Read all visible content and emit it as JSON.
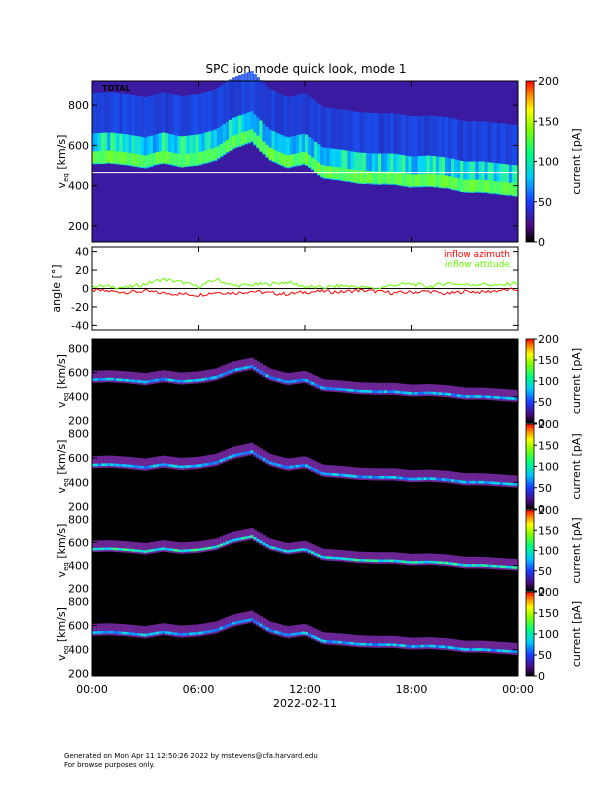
{
  "title": "SPC ion mode quick look, mode 1",
  "xaxis": {
    "ticks": [
      "00:00",
      "06:00",
      "12:00",
      "18:00",
      "00:00"
    ],
    "tick_hours": [
      0,
      6,
      12,
      18,
      24
    ],
    "date_label": "2022-02-11",
    "range_hours": [
      0,
      24
    ]
  },
  "panels": [
    {
      "id": "total",
      "label": "TOTAL",
      "ylabel_main": "v",
      "ylabel_sub": "eq",
      "ylabel_unit": " [km/s]",
      "yticks": [
        "200",
        "400",
        "600",
        "800"
      ],
      "ytick_values": [
        200,
        400,
        600,
        800
      ],
      "yrange": [
        120,
        920
      ],
      "colorbar": {
        "ticks": [
          "0",
          "50",
          "100",
          "150",
          "200"
        ],
        "tick_values": [
          0,
          50,
          100,
          150,
          200
        ],
        "label": "current [pA]"
      },
      "background": "#3a1aa0",
      "peak_color_low": "#1a8cff",
      "peak_color_high": "#6dff2a"
    },
    {
      "id": "s1",
      "label": "",
      "ylabel_main": "v",
      "ylabel_sub": "eq",
      "ylabel_unit": " [km/s]",
      "yticks": [
        "200",
        "400",
        "600",
        "800"
      ],
      "ytick_values": [
        200,
        400,
        600,
        800
      ],
      "yrange": [
        180,
        880
      ],
      "colorbar": {
        "ticks": [
          "0",
          "50",
          "100",
          "150",
          "200"
        ],
        "tick_values": [
          0,
          50,
          100,
          150,
          200
        ],
        "label": "current [pA]"
      },
      "background": "#000000"
    },
    {
      "id": "s2",
      "label": "",
      "ylabel_main": "v",
      "ylabel_sub": "eq",
      "ylabel_unit": " [km/s]",
      "yticks": [
        "200",
        "400",
        "600",
        "800"
      ],
      "ytick_values": [
        200,
        400,
        600,
        800
      ],
      "yrange": [
        180,
        880
      ],
      "colorbar": {
        "ticks": [
          "0",
          "50",
          "100",
          "150",
          "200"
        ],
        "tick_values": [
          0,
          50,
          100,
          150,
          200
        ],
        "label": "current [pA]"
      },
      "background": "#000000"
    },
    {
      "id": "s3",
      "label": "",
      "ylabel_main": "v",
      "ylabel_sub": "eq",
      "ylabel_unit": " [km/s]",
      "yticks": [
        "200",
        "400",
        "600",
        "800"
      ],
      "ytick_values": [
        200,
        400,
        600,
        800
      ],
      "yrange": [
        180,
        880
      ],
      "colorbar": {
        "ticks": [
          "0",
          "50",
          "100",
          "150",
          "200"
        ],
        "tick_values": [
          0,
          50,
          100,
          150,
          200
        ],
        "label": "current [pA]"
      },
      "background": "#000000"
    },
    {
      "id": "s4",
      "label": "",
      "ylabel_main": "v",
      "ylabel_sub": "eq",
      "ylabel_unit": " [km/s]",
      "yticks": [
        "200",
        "400",
        "600",
        "800"
      ],
      "ytick_values": [
        200,
        400,
        600,
        800
      ],
      "yrange": [
        180,
        880
      ],
      "colorbar": {
        "ticks": [
          "0",
          "50",
          "100",
          "150",
          "200"
        ],
        "tick_values": [
          0,
          50,
          100,
          150,
          200
        ],
        "label": "current [pA]"
      },
      "background": "#000000"
    }
  ],
  "angle_panel": {
    "ylabel": "angle [°]",
    "yticks": [
      "-40",
      "-20",
      "0",
      "20",
      "40"
    ],
    "ytick_values": [
      -40,
      -20,
      0,
      20,
      40
    ],
    "yrange": [
      -45,
      45
    ],
    "legend": [
      {
        "name": "inflow azimuth",
        "color": "#ff0000"
      },
      {
        "name": "inflow attitude",
        "color": "#66ff00"
      }
    ]
  },
  "chart_data": {
    "type": "heatmap",
    "title": "SPC ion mode quick look, mode 1",
    "x_unit": "hour of 2022-02-11",
    "colorbar_range_pA": [
      0,
      200
    ],
    "bulk_speed_kms": {
      "hours": [
        0,
        1,
        2,
        3,
        4,
        5,
        6,
        7,
        8,
        9,
        10,
        11,
        12,
        13,
        14,
        15,
        16,
        17,
        18,
        19,
        20,
        21,
        22,
        23,
        24
      ],
      "values": [
        540,
        545,
        535,
        520,
        545,
        525,
        535,
        560,
        620,
        650,
        560,
        520,
        540,
        470,
        460,
        445,
        440,
        440,
        425,
        430,
        420,
        400,
        400,
        390,
        380
      ]
    },
    "inflow_azimuth_deg": {
      "hours": [
        0,
        1,
        2,
        3,
        4,
        5,
        6,
        7,
        8,
        9,
        10,
        11,
        12,
        13,
        14,
        15,
        16,
        17,
        18,
        19,
        20,
        21,
        22,
        23,
        24
      ],
      "values": [
        -2,
        -3,
        -4,
        -3,
        -5,
        -6,
        -7,
        -4,
        -5,
        -3,
        -5,
        -6,
        -4,
        -3,
        -4,
        -2,
        -3,
        -5,
        -4,
        -3,
        -6,
        -3,
        -4,
        -2,
        -1
      ]
    },
    "inflow_attitude_deg": {
      "hours": [
        0,
        1,
        2,
        3,
        4,
        5,
        6,
        7,
        8,
        9,
        10,
        11,
        12,
        13,
        14,
        15,
        16,
        17,
        18,
        19,
        20,
        21,
        22,
        23,
        24
      ],
      "values": [
        3,
        2,
        1,
        5,
        10,
        7,
        2,
        10,
        3,
        4,
        5,
        7,
        2,
        1,
        3,
        2,
        0,
        4,
        5,
        2,
        6,
        4,
        5,
        3,
        7
      ]
    }
  },
  "footer": {
    "line1": "Generated on Mon Apr 11 12:50:26 2022 by mstevens@cfa.harvard.edu",
    "line2": "For browse purposes only."
  }
}
